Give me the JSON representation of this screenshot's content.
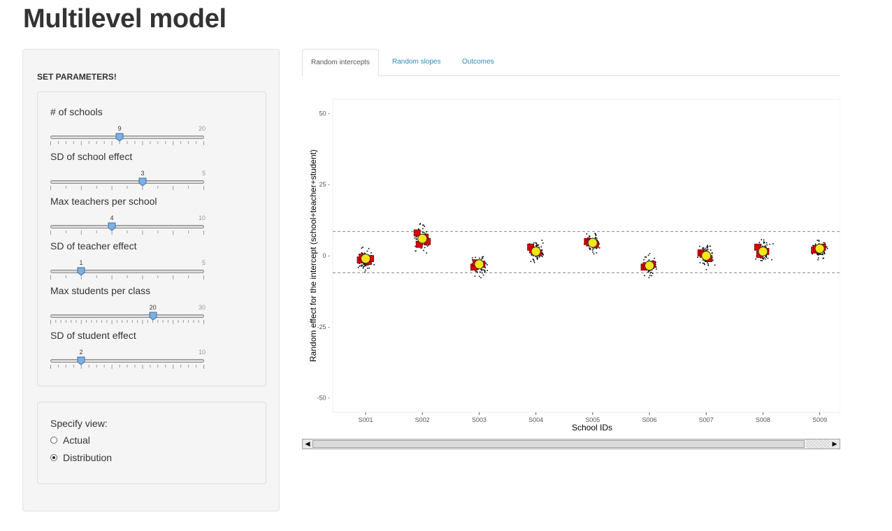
{
  "page": {
    "title": "Multilevel model"
  },
  "sidebar": {
    "heading": "SET PARAMETERS!",
    "sliders": [
      {
        "label": "# of schools",
        "min": 0,
        "max": 20,
        "max_label": "20",
        "value": 9,
        "value_label": "9",
        "ticks": 20
      },
      {
        "label": "SD of school effect",
        "min": 0,
        "max": 5,
        "max_label": "5",
        "value": 3,
        "value_label": "3",
        "ticks": 10
      },
      {
        "label": "Max teachers per school",
        "min": 0,
        "max": 10,
        "max_label": "10",
        "value": 4,
        "value_label": "4",
        "ticks": 10
      },
      {
        "label": "SD of teacher effect",
        "min": 0,
        "max": 5,
        "max_label": "5",
        "value": 1,
        "value_label": "1",
        "ticks": 10
      },
      {
        "label": "Max students per class",
        "min": 0,
        "max": 30,
        "max_label": "30",
        "value": 20,
        "value_label": "20",
        "ticks": 30
      },
      {
        "label": "SD of student effect",
        "min": 0,
        "max": 10,
        "max_label": "10",
        "value": 2,
        "value_label": "2",
        "ticks": 20
      }
    ],
    "view": {
      "label": "Specify view:",
      "options": [
        {
          "label": "Actual",
          "checked": false
        },
        {
          "label": "Distribution",
          "checked": true
        }
      ]
    }
  },
  "tabs": [
    {
      "label": "Random intercepts",
      "active": true
    },
    {
      "label": "Random slopes",
      "active": false
    },
    {
      "label": "Outcomes",
      "active": false
    }
  ],
  "chart_data": {
    "type": "scatter",
    "xlabel": "School IDs",
    "ylabel": "Random effect for the intercept (school+teacher+student)",
    "ylim": [
      -55,
      55
    ],
    "yticks": [
      50,
      25,
      0,
      -25,
      -50
    ],
    "yticklabels": [
      "50 -",
      "25 -",
      "0 -",
      "-25 -",
      "-50 -"
    ],
    "categories": [
      "S001",
      "S002",
      "S003",
      "S004",
      "S005",
      "S006",
      "S007",
      "S008",
      "S009"
    ],
    "school_means": [
      -1,
      6,
      -3,
      1.5,
      4.5,
      -3.5,
      0,
      1.5,
      2.5
    ],
    "teacher_effects": [
      [
        -1.5,
        -2,
        -0.5,
        -1
      ],
      [
        8,
        6.5,
        4,
        5
      ],
      [
        -4,
        -3,
        -2.5
      ],
      [
        3,
        1,
        2
      ],
      [
        5,
        4,
        4.5
      ],
      [
        -4,
        -3,
        -3.5
      ],
      [
        1,
        -1,
        0.5
      ],
      [
        3,
        1.5,
        0.5
      ],
      [
        2,
        3,
        2.5
      ]
    ],
    "student_spread": 3,
    "reference_lines": [
      8.5,
      -6
    ],
    "grid": false,
    "colors": {
      "teacher": "#dd0000",
      "school": "#f5e617",
      "student": "#000000",
      "reference": "#888888"
    }
  }
}
